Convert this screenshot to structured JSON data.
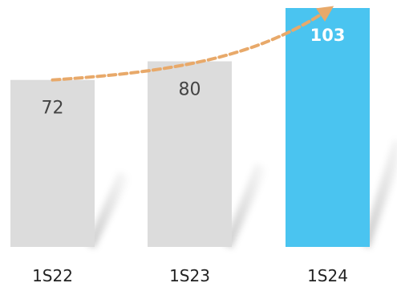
{
  "chart_data": {
    "type": "bar",
    "categories": [
      "1S22",
      "1S23",
      "1S24"
    ],
    "values": [
      72,
      80,
      103
    ],
    "title": "",
    "xlabel": "",
    "ylabel": "",
    "grid": false,
    "legend": "none",
    "trend_arrow": true
  },
  "colors": {
    "bar_default": "#dcdcdc",
    "bar_highlight": "#4ac4f0",
    "label_default": "#444444",
    "label_highlight": "#ffffff",
    "arrow": "#e8a96a",
    "category_text": "#222222"
  }
}
